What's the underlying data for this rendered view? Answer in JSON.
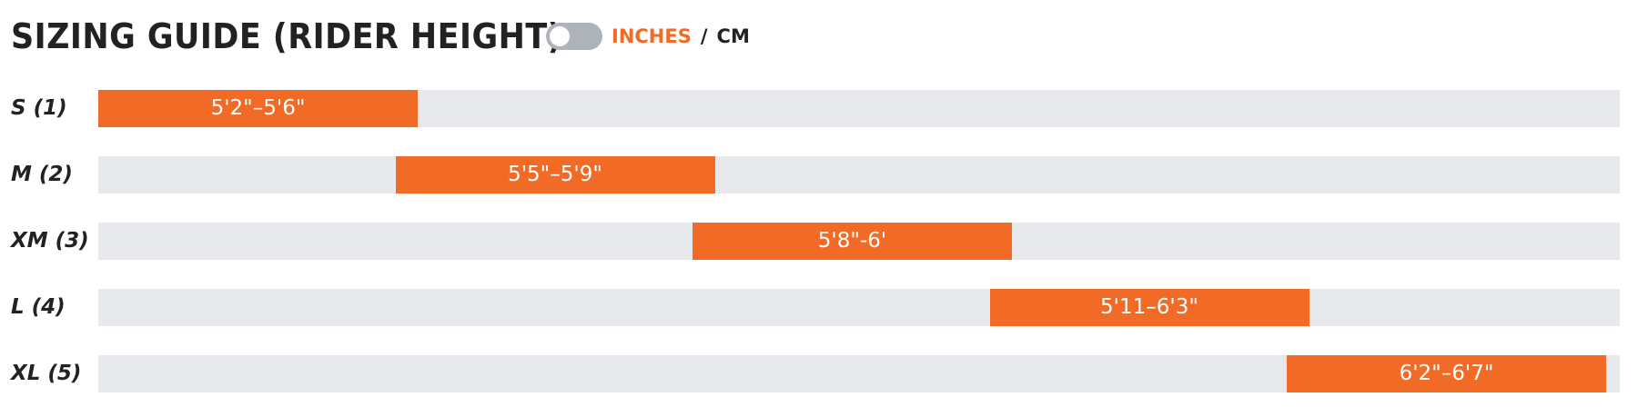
{
  "header": {
    "title": "SIZING GUIDE (RIDER HEIGHT)",
    "unit_on": "INCHES",
    "separator": "/",
    "unit_off": "CM"
  },
  "rows": [
    {
      "label": "S (1)",
      "range": "5'2\"–5'6\""
    },
    {
      "label": "M (2)",
      "range": "5'5\"–5'9\""
    },
    {
      "label": "XM (3)",
      "range": "5'8\"-6'"
    },
    {
      "label": "L (4)",
      "range": "5'11–6'3\""
    },
    {
      "label": "XL (5)",
      "range": "6'2\"–6'7\""
    }
  ]
}
